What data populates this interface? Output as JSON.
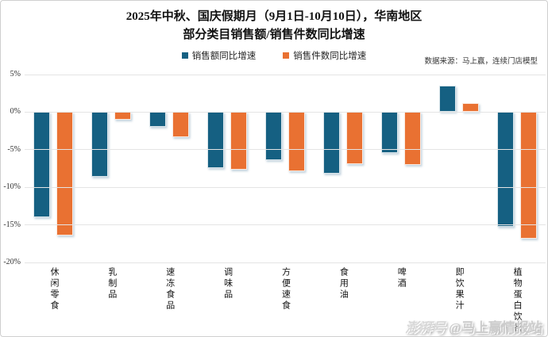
{
  "title": {
    "line1": "2025年中秋、国庆假期月（9月1日-10月10日），华南地区",
    "line2": "部分类目销售额/销售件数同比增速"
  },
  "legend": [
    {
      "label": "销售额同比增速",
      "color": "#156082"
    },
    {
      "label": "销售件数同比增速",
      "color": "#E97132"
    }
  ],
  "source_note": "数据来源：马上赢，连续门店模型",
  "watermark": {
    "logo": "澎湃号",
    "handle": "@马上赢情报站"
  },
  "colors": {
    "background": "#ffffff",
    "gridline": "#e4e4e4",
    "series1": "#156082",
    "series2": "#E97132"
  },
  "chart_data": {
    "type": "bar",
    "title": "2025年中秋、国庆假期月（9月1日-10月10日），华南地区 部分类目销售额/销售件数同比增速",
    "categories": [
      "休闲零食",
      "乳制品",
      "速冻食品",
      "调味品",
      "方便速食",
      "食用油",
      "啤酒",
      "即饮果汁",
      "植物蛋白饮料"
    ],
    "series": [
      {
        "name": "销售额同比增速",
        "color": "#156082",
        "values": [
          -14.0,
          -8.6,
          -2.0,
          -7.5,
          -6.4,
          -8.2,
          -5.4,
          3.5,
          -15.3
        ]
      },
      {
        "name": "销售件数同比增速",
        "color": "#E97132",
        "values": [
          -16.4,
          -1.0,
          -3.3,
          -7.7,
          -7.9,
          -6.9,
          -7.0,
          1.2,
          -16.8
        ]
      }
    ],
    "xlabel": "",
    "ylabel": "",
    "ylim": [
      -20,
      5
    ],
    "yticks": [
      {
        "value": 5,
        "label": "5%"
      },
      {
        "value": 0,
        "label": "0%"
      },
      {
        "value": -5,
        "label": "-5%"
      },
      {
        "value": -10,
        "label": "-10%"
      },
      {
        "value": -15,
        "label": "-15%"
      },
      {
        "value": -20,
        "label": "-20%"
      }
    ],
    "grid": true,
    "legend_position": "top"
  }
}
